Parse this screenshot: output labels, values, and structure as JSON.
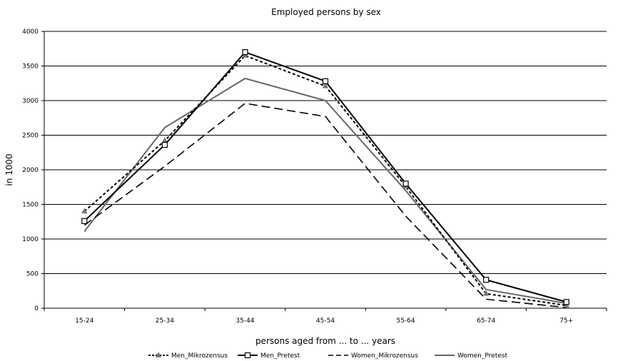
{
  "chart_data": {
    "type": "line",
    "title": "Employed persons by sex",
    "xlabel": "persons aged from ... to ... years",
    "ylabel": "in 1000",
    "categories": [
      "15-24",
      "25-34",
      "35-44",
      "45-54",
      "55-64",
      "65-74",
      "75+"
    ],
    "yticks": [
      "0",
      "500",
      "1000",
      "1500",
      "2000",
      "2500",
      "3000",
      "3500",
      "4000"
    ],
    "ylim": [
      0,
      4000
    ],
    "grid": true,
    "legend_position": "bottom",
    "series": [
      {
        "name": "Men_Mikrozensus",
        "values": [
          1400,
          2420,
          3650,
          3210,
          1760,
          210,
          40
        ],
        "color": "#000000",
        "dash": "4,3",
        "marker": "triangle",
        "width": 2
      },
      {
        "name": "Men_Pretest",
        "values": [
          1260,
          2360,
          3700,
          3280,
          1800,
          410,
          90
        ],
        "color": "#000000",
        "dash": "",
        "marker": "square",
        "width": 2
      },
      {
        "name": "Women_Mikrozensus",
        "values": [
          1200,
          2050,
          2960,
          2770,
          1330,
          130,
          10
        ],
        "color": "#000000",
        "dash": "12,6",
        "marker": "none",
        "width": 1.6
      },
      {
        "name": "Women_Pretest",
        "values": [
          1110,
          2610,
          3320,
          3000,
          1700,
          270,
          70
        ],
        "color": "#666666",
        "dash": "",
        "marker": "none",
        "width": 2
      }
    ]
  }
}
